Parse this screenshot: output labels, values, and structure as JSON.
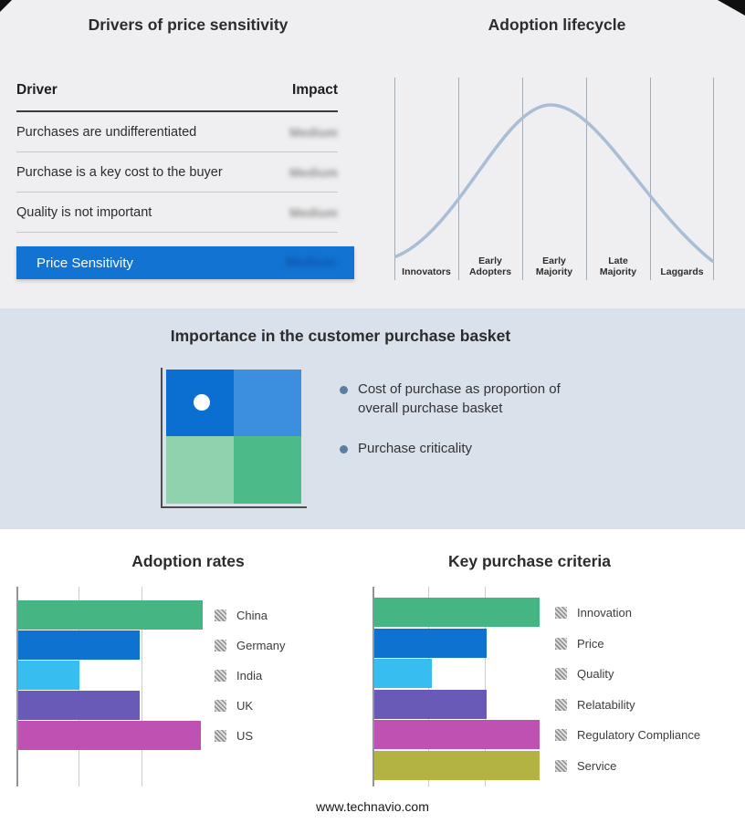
{
  "chart_data": [
    {
      "id": "adoption_lifecycle",
      "type": "line",
      "title": "Adoption lifecycle",
      "curve": "bell",
      "x_categories": [
        "Innovators",
        "Early Adopters",
        "Early Majority",
        "Late Majority",
        "Laggards"
      ],
      "peak": "Early Majority",
      "line_color": "#a9bdd5",
      "grid": "vertical",
      "y_axis_labels": "none shown"
    },
    {
      "id": "adoption_rates",
      "type": "bar",
      "title": "Adoption rates",
      "orientation": "horizontal",
      "categories": [
        "China",
        "Germany",
        "India",
        "UK",
        "US"
      ],
      "values": [
        100,
        66,
        33,
        66,
        99
      ],
      "units": "relative, no axis tick labels shown",
      "colors": [
        "#45b583",
        "#0e72d0",
        "#38bdf0",
        "#6a5ab8",
        "#bf51b2"
      ],
      "legend_position": "right",
      "grid": "vertical"
    },
    {
      "id": "key_purchase_criteria",
      "type": "bar",
      "title": "Key purchase criteria",
      "orientation": "horizontal",
      "categories": [
        "Innovation",
        "Price",
        "Quality",
        "Relatability",
        "Regulatory Compliance",
        "Service"
      ],
      "values": [
        100,
        68,
        35,
        68,
        100,
        100
      ],
      "units": "relative, no axis tick labels shown",
      "colors": [
        "#45b583",
        "#0e72d0",
        "#38bdf0",
        "#6a5ab8",
        "#bf51b2",
        "#b3b344"
      ],
      "legend_position": "right",
      "grid": "vertical"
    }
  ],
  "drivers_panel": {
    "title": "Drivers of price sensitivity",
    "table": {
      "headers": {
        "driver": "Driver",
        "impact": "Impact"
      },
      "rows": [
        {
          "driver": "Purchases are undifferentiated",
          "impact": "Medium"
        },
        {
          "driver": "Purchase is a key cost to the buyer",
          "impact": "Medium"
        },
        {
          "driver": "Quality is not important",
          "impact": "Medium"
        }
      ],
      "impact_values_blurred": true
    },
    "summary_row": {
      "label": "Price Sensitivity",
      "impact": "Medium"
    },
    "colors": {
      "summary_bg": "#1273d2",
      "summary_text": "#ffffff"
    }
  },
  "basket_panel": {
    "title": "Importance in the customer purchase basket",
    "bullets": [
      "Cost of purchase as proportion of overall purchase basket",
      "Purchase criticality"
    ],
    "matrix_colors": {
      "top_left": "#0b6fd2",
      "top_right": "#3c8ede",
      "bottom_left": "#8fd2ad",
      "bottom_right": "#4cba89"
    },
    "marker": {
      "shape": "circle",
      "color": "#ffffff",
      "position": "top_left"
    }
  },
  "footer": {
    "url": "www.technavio.com"
  }
}
